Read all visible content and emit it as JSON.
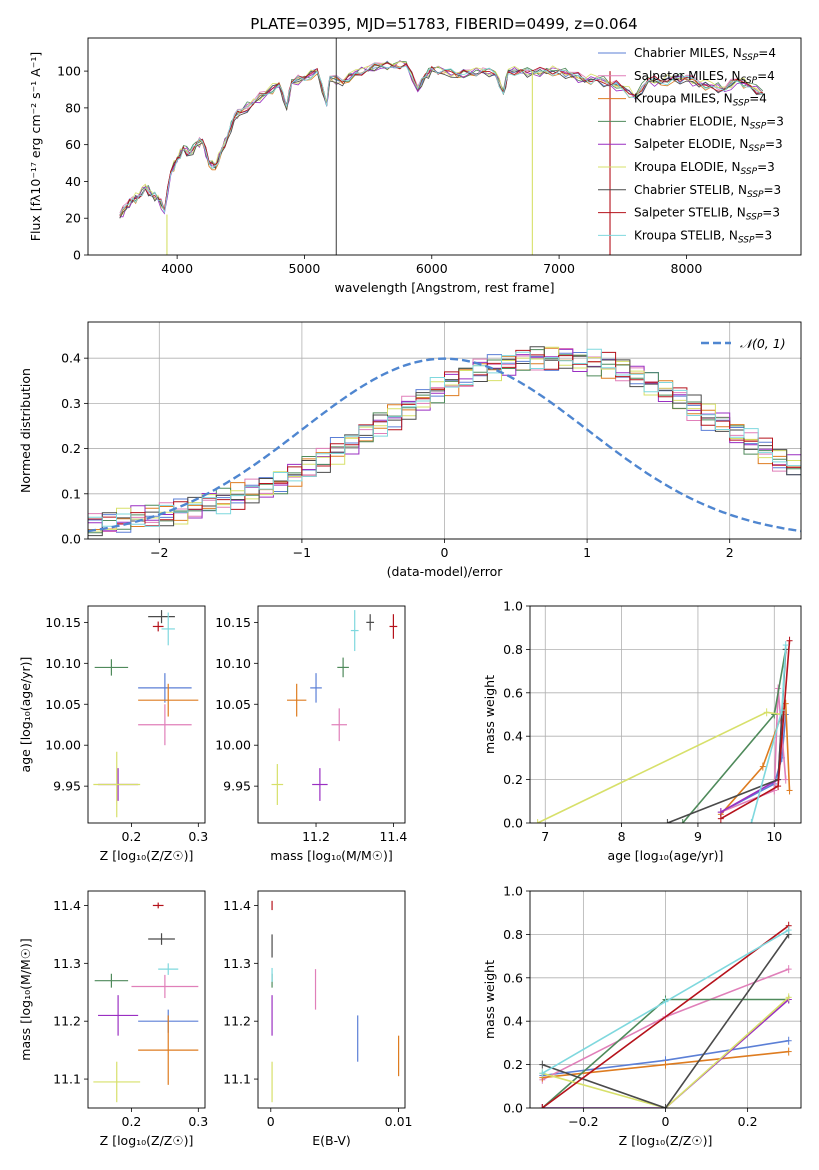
{
  "figure_title": "PLATE=0395, MJD=51783, FIBERID=0499, z=0.064",
  "colors": {
    "chabrier_miles": "#5b7fd6",
    "salpeter_miles": "#e07fb9",
    "kroupa_miles": "#de7c20",
    "chabrier_elodie": "#4f8a5b",
    "salpeter_elodie": "#9a2fc2",
    "kroupa_elodie": "#d7e06a",
    "chabrier_stelib": "#4a4a4a",
    "salpeter_stelib": "#b5121b",
    "kroupa_stelib": "#7fd8de",
    "normal": "#4f86d0"
  },
  "chart_data": [
    {
      "id": "spectrum",
      "type": "line",
      "title": "PLATE=0395, MJD=51783, FIBERID=0499, z=0.064",
      "xlabel": "wavelength [Angstrom, rest frame]",
      "ylabel": "Flux [fλ10⁻¹⁷ erg cm⁻² s⁻¹ A⁻¹]",
      "xlim": [
        3300,
        8900
      ],
      "ylim": [
        0,
        118
      ],
      "xticks": [
        4000,
        5000,
        6000,
        7000,
        8000
      ],
      "yticks": [
        0,
        20,
        40,
        60,
        80,
        100
      ],
      "legend_position": "top-right",
      "x": [
        3550,
        3600,
        3650,
        3700,
        3750,
        3800,
        3850,
        3900,
        3950,
        4000,
        4050,
        4100,
        4150,
        4200,
        4250,
        4300,
        4350,
        4400,
        4450,
        4500,
        4600,
        4700,
        4800,
        4861,
        4900,
        5000,
        5100,
        5175,
        5200,
        5300,
        5400,
        5500,
        5600,
        5700,
        5800,
        5890,
        5950,
        6000,
        6100,
        6200,
        6300,
        6400,
        6500,
        6563,
        6600,
        6700,
        6800,
        6900,
        7000,
        7100,
        7200,
        7300,
        7400,
        7500,
        7600,
        7700,
        7800,
        7900,
        8000,
        8100,
        8200,
        8300,
        8400,
        8500,
        8600
      ],
      "y": [
        21,
        26,
        30,
        32,
        37,
        33,
        31,
        24,
        45,
        52,
        58,
        55,
        60,
        62,
        50,
        48,
        57,
        65,
        75,
        78,
        83,
        88,
        93,
        80,
        94,
        96,
        100,
        82,
        96,
        94,
        99,
        101,
        103,
        103,
        104,
        90,
        97,
        101,
        100,
        98,
        99,
        100,
        99,
        88,
        100,
        100,
        99,
        100,
        100,
        98,
        95,
        96,
        93,
        91,
        86,
        95,
        94,
        96,
        96,
        93,
        92,
        90,
        95,
        92,
        88
      ],
      "series": [
        {
          "name": "Chabrier MILES, N_SSP=4",
          "color_key": "chabrier_miles"
        },
        {
          "name": "Salpeter MILES, N_SSP=4",
          "color_key": "salpeter_miles"
        },
        {
          "name": "Kroupa MILES, N_SSP=4",
          "color_key": "kroupa_miles"
        },
        {
          "name": "Chabrier ELODIE, N_SSP=3",
          "color_key": "chabrier_elodie"
        },
        {
          "name": "Salpeter ELODIE, N_SSP=3",
          "color_key": "salpeter_elodie"
        },
        {
          "name": "Kroupa ELODIE, N_SSP=3",
          "color_key": "kroupa_elodie"
        },
        {
          "name": "Chabrier STELIB, N_SSP=3",
          "color_key": "chabrier_stelib"
        },
        {
          "name": "Salpeter STELIB, N_SSP=3",
          "color_key": "salpeter_stelib"
        },
        {
          "name": "Kroupa STELIB, N_SSP=3",
          "color_key": "kroupa_stelib"
        }
      ],
      "legend_labels": [
        [
          "Chabrier MILES, N",
          "SSP",
          "=4"
        ],
        [
          "Salpeter MILES, N",
          "SSP",
          "=4"
        ],
        [
          "Kroupa MILES, N",
          "SSP",
          "=4"
        ],
        [
          "Chabrier ELODIE, N",
          "SSP",
          "=3"
        ],
        [
          "Salpeter ELODIE, N",
          "SSP",
          "=3"
        ],
        [
          "Kroupa ELODIE, N",
          "SSP",
          "=3"
        ],
        [
          "Chabrier STELIB, N",
          "SSP",
          "=3"
        ],
        [
          "Salpeter STELIB, N",
          "SSP",
          "=3"
        ],
        [
          "Kroupa STELIB, N",
          "SSP",
          "=3"
        ]
      ],
      "spikes": [
        {
          "x": 3920,
          "y_top": 22,
          "color_key": "kroupa_elodie"
        },
        {
          "x": 5250,
          "y_top": 118,
          "color_key": "chabrier_stelib"
        },
        {
          "x": 6790,
          "y_top": 100,
          "color_key": "kroupa_elodie"
        },
        {
          "x": 7400,
          "y_top": 100,
          "color_key": "salpeter_stelib"
        }
      ]
    },
    {
      "id": "residuals",
      "type": "bar",
      "xlabel": "(data-model)/error",
      "ylabel": "Normed distribution",
      "xlim": [
        -2.5,
        2.5
      ],
      "ylim": [
        0,
        0.48
      ],
      "xticks": [
        -2,
        -1,
        0,
        1,
        2
      ],
      "yticks": [
        0.0,
        0.1,
        0.2,
        0.3,
        0.4
      ],
      "grid": true,
      "bin_edges_start": -2.5,
      "bin_width": 0.1,
      "base_values": [
        0.03,
        0.035,
        0.04,
        0.045,
        0.05,
        0.055,
        0.06,
        0.07,
        0.08,
        0.085,
        0.095,
        0.105,
        0.115,
        0.125,
        0.14,
        0.16,
        0.175,
        0.195,
        0.215,
        0.235,
        0.255,
        0.27,
        0.29,
        0.31,
        0.33,
        0.345,
        0.36,
        0.375,
        0.38,
        0.39,
        0.395,
        0.4,
        0.4,
        0.4,
        0.395,
        0.39,
        0.385,
        0.375,
        0.36,
        0.345,
        0.33,
        0.31,
        0.29,
        0.27,
        0.255,
        0.235,
        0.215,
        0.195,
        0.175,
        0.16,
        0.14,
        0.125,
        0.115,
        0.105,
        0.095,
        0.085,
        0.08,
        0.07,
        0.06,
        0.055,
        0.05,
        0.045,
        0.04,
        0.035,
        0.03
      ],
      "normal_curve": {
        "name": "𝒩(0, 1)",
        "mu": 0,
        "sigma": 1,
        "color_key": "normal"
      },
      "legend_position": "top-right"
    },
    {
      "id": "age_vs_Z",
      "type": "scatter",
      "xlabel": "Z [log₁₀(Z/Z☉)]",
      "ylabel": "age [log₁₀(age/yr)]",
      "xlim": [
        0.135,
        0.31
      ],
      "ylim": [
        9.905,
        10.17
      ],
      "xticks": [
        0.1,
        0.2,
        0.3
      ],
      "yticks": [
        9.95,
        10.0,
        10.05,
        10.1,
        10.15
      ],
      "points": [
        {
          "x": 0.25,
          "y": 10.07,
          "xerr": 0.04,
          "yerr": 0.018,
          "color_key": "chabrier_miles"
        },
        {
          "x": 0.25,
          "y": 10.025,
          "xerr": 0.04,
          "yerr": 0.025,
          "color_key": "salpeter_miles"
        },
        {
          "x": 0.255,
          "y": 10.055,
          "xerr": 0.045,
          "yerr": 0.02,
          "color_key": "kroupa_miles"
        },
        {
          "x": 0.17,
          "y": 10.095,
          "xerr": 0.025,
          "yerr": 0.01,
          "color_key": "chabrier_elodie"
        },
        {
          "x": 0.18,
          "y": 9.952,
          "xerr": 0.03,
          "yerr": 0.02,
          "color_key": "salpeter_elodie"
        },
        {
          "x": 0.178,
          "y": 9.952,
          "xerr": 0.035,
          "yerr": 0.04,
          "color_key": "kroupa_elodie"
        },
        {
          "x": 0.245,
          "y": 10.157,
          "xerr": 0.02,
          "yerr": 0.008,
          "color_key": "chabrier_stelib"
        },
        {
          "x": 0.24,
          "y": 10.145,
          "xerr": 0.008,
          "yerr": 0.006,
          "color_key": "salpeter_stelib"
        },
        {
          "x": 0.255,
          "y": 10.142,
          "xerr": 0.01,
          "yerr": 0.02,
          "color_key": "kroupa_stelib"
        }
      ]
    },
    {
      "id": "age_vs_mass",
      "type": "scatter",
      "xlabel": "mass [log₁₀(M/M☉)]",
      "ylabel": "",
      "xlim": [
        11.05,
        11.43
      ],
      "ylim": [
        9.905,
        10.17
      ],
      "xticks": [
        11.2,
        11.4
      ],
      "yticks": [
        9.95,
        10.0,
        10.05,
        10.1,
        10.15
      ],
      "points": [
        {
          "x": 11.2,
          "y": 10.07,
          "xerr": 0.015,
          "yerr": 0.018,
          "color_key": "chabrier_miles"
        },
        {
          "x": 11.26,
          "y": 10.025,
          "xerr": 0.02,
          "yerr": 0.02,
          "color_key": "salpeter_miles"
        },
        {
          "x": 11.15,
          "y": 10.055,
          "xerr": 0.025,
          "yerr": 0.02,
          "color_key": "kroupa_miles"
        },
        {
          "x": 11.27,
          "y": 10.095,
          "xerr": 0.015,
          "yerr": 0.012,
          "color_key": "chabrier_elodie"
        },
        {
          "x": 11.21,
          "y": 9.952,
          "xerr": 0.02,
          "yerr": 0.02,
          "color_key": "salpeter_elodie"
        },
        {
          "x": 11.1,
          "y": 9.952,
          "xerr": 0.015,
          "yerr": 0.025,
          "color_key": "kroupa_elodie"
        },
        {
          "x": 11.34,
          "y": 10.15,
          "xerr": 0.01,
          "yerr": 0.01,
          "color_key": "chabrier_stelib"
        },
        {
          "x": 11.4,
          "y": 10.145,
          "xerr": 0.01,
          "yerr": 0.015,
          "color_key": "salpeter_stelib"
        },
        {
          "x": 11.3,
          "y": 10.14,
          "xerr": 0.01,
          "yerr": 0.025,
          "color_key": "kroupa_stelib"
        }
      ]
    },
    {
      "id": "mass_weight_vs_age",
      "type": "line",
      "xlabel": "age  [log₁₀(age/yr)]",
      "ylabel": "mass weight",
      "xlim": [
        6.8,
        10.35
      ],
      "ylim": [
        0,
        1.0
      ],
      "xticks": [
        7,
        8,
        9,
        10
      ],
      "yticks": [
        0.0,
        0.2,
        0.4,
        0.6,
        0.8,
        1.0
      ],
      "grid": true,
      "series": [
        {
          "name": "Chabrier MILES, N_SSP=4",
          "color_key": "chabrier_miles",
          "x": [
            9.3,
            10.0,
            10.1,
            10.15
          ],
          "y": [
            0.05,
            0.18,
            0.3,
            0.5
          ]
        },
        {
          "name": "Salpeter MILES, N_SSP=4",
          "color_key": "salpeter_miles",
          "x": [
            9.3,
            10.0,
            10.05,
            10.15
          ],
          "y": [
            0.05,
            0.15,
            0.62,
            0.2
          ]
        },
        {
          "name": "Kroupa MILES, N_SSP=4",
          "color_key": "kroupa_miles",
          "x": [
            9.3,
            9.85,
            10.15,
            10.2
          ],
          "y": [
            0.04,
            0.26,
            0.55,
            0.15
          ]
        },
        {
          "name": "Chabrier ELODIE, N_SSP=3",
          "color_key": "chabrier_elodie",
          "x": [
            8.8,
            10.0,
            10.15
          ],
          "y": [
            0.0,
            0.5,
            0.8
          ]
        },
        {
          "name": "Salpeter ELODIE, N_SSP=3",
          "color_key": "salpeter_elodie",
          "x": [
            9.3,
            10.05,
            10.1
          ],
          "y": [
            0.05,
            0.2,
            0.5
          ]
        },
        {
          "name": "Kroupa ELODIE, N_SSP=3",
          "color_key": "kroupa_elodie",
          "x": [
            6.9,
            9.9,
            10.1
          ],
          "y": [
            0.0,
            0.51,
            0.5
          ]
        },
        {
          "name": "Chabrier STELIB, N_SSP=3",
          "color_key": "chabrier_stelib",
          "x": [
            8.6,
            10.05,
            10.15
          ],
          "y": [
            0.0,
            0.2,
            0.8
          ]
        },
        {
          "name": "Salpeter STELIB, N_SSP=3",
          "color_key": "salpeter_stelib",
          "x": [
            9.3,
            10.05,
            10.2
          ],
          "y": [
            0.02,
            0.17,
            0.84
          ]
        },
        {
          "name": "Kroupa STELIB, N_SSP=3",
          "color_key": "kroupa_stelib",
          "x": [
            9.7,
            10.1,
            10.15
          ],
          "y": [
            0.0,
            0.52,
            0.82
          ]
        }
      ]
    },
    {
      "id": "mass_vs_Z",
      "type": "scatter",
      "xlabel": "Z [log₁₀(Z/Z☉)]",
      "ylabel": "mass [log₁₀(M/M☉)]",
      "xlim": [
        0.135,
        0.31
      ],
      "ylim": [
        11.05,
        11.425
      ],
      "xticks": [
        0.1,
        0.2,
        0.3
      ],
      "yticks": [
        11.1,
        11.2,
        11.3,
        11.4
      ],
      "points": [
        {
          "x": 0.255,
          "y": 11.2,
          "xerr": 0.045,
          "yerr": 0.02,
          "color_key": "chabrier_miles"
        },
        {
          "x": 0.25,
          "y": 11.26,
          "xerr": 0.05,
          "yerr": 0.02,
          "color_key": "salpeter_miles"
        },
        {
          "x": 0.255,
          "y": 11.15,
          "xerr": 0.045,
          "yerr": 0.06,
          "color_key": "kroupa_miles"
        },
        {
          "x": 0.17,
          "y": 11.27,
          "xerr": 0.025,
          "yerr": 0.012,
          "color_key": "chabrier_elodie"
        },
        {
          "x": 0.18,
          "y": 11.21,
          "xerr": 0.03,
          "yerr": 0.035,
          "color_key": "salpeter_elodie"
        },
        {
          "x": 0.178,
          "y": 11.095,
          "xerr": 0.035,
          "yerr": 0.035,
          "color_key": "kroupa_elodie"
        },
        {
          "x": 0.245,
          "y": 11.342,
          "xerr": 0.02,
          "yerr": 0.01,
          "color_key": "chabrier_stelib"
        },
        {
          "x": 0.24,
          "y": 11.4,
          "xerr": 0.008,
          "yerr": 0.005,
          "color_key": "salpeter_stelib"
        },
        {
          "x": 0.255,
          "y": 11.29,
          "xerr": 0.015,
          "yerr": 0.01,
          "color_key": "kroupa_stelib"
        }
      ]
    },
    {
      "id": "mass_vs_ebv",
      "type": "scatter",
      "xlabel": "E(B-V)",
      "ylabel": "",
      "xlim": [
        -0.001,
        0.0105
      ],
      "ylim": [
        11.05,
        11.425
      ],
      "xticks": [
        0.0,
        0.01
      ],
      "yticks": [
        11.1,
        11.2,
        11.3,
        11.4
      ],
      "points": [
        {
          "x": 0.0068,
          "y": 11.17,
          "xerr": 0,
          "yerr": 0.04,
          "color_key": "chabrier_miles"
        },
        {
          "x": 0.0035,
          "y": 11.255,
          "xerr": 0,
          "yerr": 0.035,
          "color_key": "salpeter_miles"
        },
        {
          "x": 0.01,
          "y": 11.14,
          "xerr": 0,
          "yerr": 0.035,
          "color_key": "kroupa_miles"
        },
        {
          "x": 0.0001,
          "y": 11.27,
          "xerr": 0,
          "yerr": 0.012,
          "color_key": "chabrier_elodie"
        },
        {
          "x": 0.0001,
          "y": 11.21,
          "xerr": 0,
          "yerr": 0.035,
          "color_key": "salpeter_elodie"
        },
        {
          "x": 0.0001,
          "y": 11.095,
          "xerr": 0,
          "yerr": 0.035,
          "color_key": "kroupa_elodie"
        },
        {
          "x": 0.0001,
          "y": 11.33,
          "xerr": 0,
          "yerr": 0.02,
          "color_key": "chabrier_stelib"
        },
        {
          "x": 0.0001,
          "y": 11.4,
          "xerr": 0,
          "yerr": 0.008,
          "color_key": "salpeter_stelib"
        },
        {
          "x": 0.0001,
          "y": 11.28,
          "xerr": 0,
          "yerr": 0.012,
          "color_key": "kroupa_stelib"
        }
      ]
    },
    {
      "id": "mass_weight_vs_Z",
      "type": "line",
      "xlabel": "Z [log₁₀(Z/Z☉)]",
      "ylabel": "mass weight",
      "xlim": [
        -0.33,
        0.33
      ],
      "ylim": [
        0,
        1.0
      ],
      "xticks": [
        -0.2,
        0.0,
        0.2
      ],
      "yticks": [
        0.0,
        0.2,
        0.4,
        0.6,
        0.8,
        1.0
      ],
      "grid": true,
      "series": [
        {
          "name": "Chabrier MILES, N_SSP=4",
          "color_key": "chabrier_miles",
          "x": [
            -0.3,
            0.0,
            0.3
          ],
          "y": [
            0.15,
            0.22,
            0.31
          ]
        },
        {
          "name": "Salpeter MILES, N_SSP=4",
          "color_key": "salpeter_miles",
          "x": [
            -0.3,
            0.0,
            0.3
          ],
          "y": [
            0.13,
            0.42,
            0.64
          ]
        },
        {
          "name": "Kroupa MILES, N_SSP=4",
          "color_key": "kroupa_miles",
          "x": [
            -0.3,
            0.0,
            0.3
          ],
          "y": [
            0.14,
            0.2,
            0.26
          ]
        },
        {
          "name": "Chabrier ELODIE, N_SSP=3",
          "color_key": "chabrier_elodie",
          "x": [
            -0.3,
            0.0,
            0.0,
            0.3
          ],
          "y": [
            0.0,
            0.5,
            0.5,
            0.5
          ]
        },
        {
          "name": "Salpeter ELODIE, N_SSP=3",
          "color_key": "salpeter_elodie",
          "x": [
            -0.3,
            0.0,
            0.3
          ],
          "y": [
            0.0,
            0.0,
            0.5
          ]
        },
        {
          "name": "Kroupa ELODIE, N_SSP=3",
          "color_key": "kroupa_elodie",
          "x": [
            -0.3,
            0.0,
            0.3
          ],
          "y": [
            0.16,
            0.0,
            0.51
          ]
        },
        {
          "name": "Chabrier STELIB, N_SSP=3",
          "color_key": "chabrier_stelib",
          "x": [
            -0.3,
            0.0,
            0.3
          ],
          "y": [
            0.2,
            0.0,
            0.8
          ]
        },
        {
          "name": "Salpeter STELIB, N_SSP=3",
          "color_key": "salpeter_stelib",
          "x": [
            -0.3,
            0.3
          ],
          "y": [
            0.0,
            0.84
          ]
        },
        {
          "name": "Kroupa STELIB, N_SSP=3",
          "color_key": "kroupa_stelib",
          "x": [
            -0.3,
            0.0,
            0.3
          ],
          "y": [
            0.16,
            0.49,
            0.82
          ]
        }
      ]
    }
  ]
}
